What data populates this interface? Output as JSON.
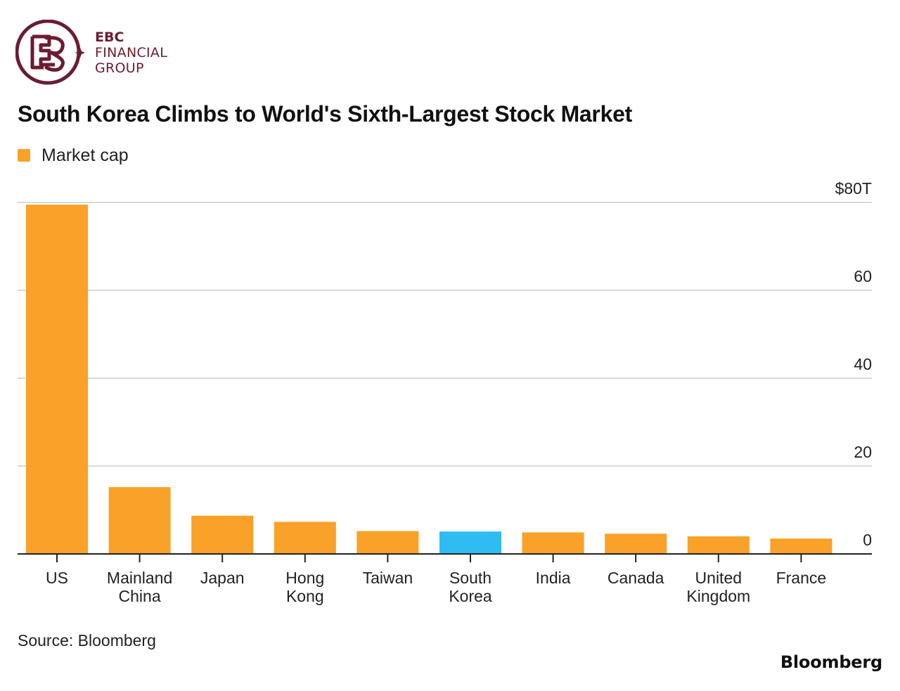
{
  "logo": {
    "line1": "EBC",
    "line2": "FINANCIAL",
    "line3": "GROUP",
    "color": "#6b1c2f"
  },
  "chart_data": {
    "type": "bar",
    "title": "South Korea Climbs to World's Sixth-Largest Stock Market",
    "legend": [
      {
        "name": "Market cap",
        "color": "#f9a128"
      }
    ],
    "legend_position": "top-left",
    "categories": [
      "US",
      "Mainland China",
      "Japan",
      "Hong Kong",
      "Taiwan",
      "South Korea",
      "India",
      "Canada",
      "United Kingdom",
      "France"
    ],
    "category_label_lines": [
      [
        "US"
      ],
      [
        "Mainland",
        "China"
      ],
      [
        "Japan"
      ],
      [
        "Hong",
        "Kong"
      ],
      [
        "Taiwan"
      ],
      [
        "South",
        "Korea"
      ],
      [
        "India"
      ],
      [
        "Canada"
      ],
      [
        "United",
        "Kingdom"
      ],
      [
        "France"
      ]
    ],
    "series": [
      {
        "name": "Market cap",
        "values": [
          79.5,
          15.2,
          8.7,
          7.3,
          5.2,
          5.1,
          4.9,
          4.6,
          4.0,
          3.5
        ]
      }
    ],
    "highlight_category": "South Korea",
    "colors": {
      "default": "#f9a128",
      "highlight": "#2ebcf3",
      "grid": "#d9d9d9",
      "axis": "#222222"
    },
    "y_ticks": [
      0,
      20,
      40,
      60,
      80
    ],
    "y_tick_labels": [
      "0",
      "20",
      "40",
      "60",
      "$80T"
    ],
    "ylim": [
      0,
      80
    ],
    "y_axis_side": "right",
    "grid": true
  },
  "source": "Source: Bloomberg",
  "brand": "Bloomberg"
}
